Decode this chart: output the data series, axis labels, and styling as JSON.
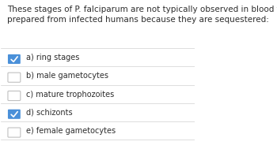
{
  "title": "These stages of P. falciparum are not typically observed in blood films\nprepared from infected humans because they are sequestered:",
  "options": [
    {
      "label": "a) ring stages",
      "checked": true
    },
    {
      "label": "b) male gametocytes",
      "checked": false
    },
    {
      "label": "c) mature trophozoites",
      "checked": false
    },
    {
      "label": "d) schizonts",
      "checked": true
    },
    {
      "label": "e) female gametocytes",
      "checked": false
    }
  ],
  "background_color": "#ffffff",
  "title_color": "#2d2d2d",
  "option_color": "#2d2d2d",
  "checked_box_color": "#4a90d9",
  "unchecked_box_color": "#ffffff",
  "unchecked_box_border": "#c0c0c0",
  "separator_color": "#d0d0d0",
  "check_color": "#ffffff",
  "title_fontsize": 7.5,
  "option_fontsize": 7.0
}
